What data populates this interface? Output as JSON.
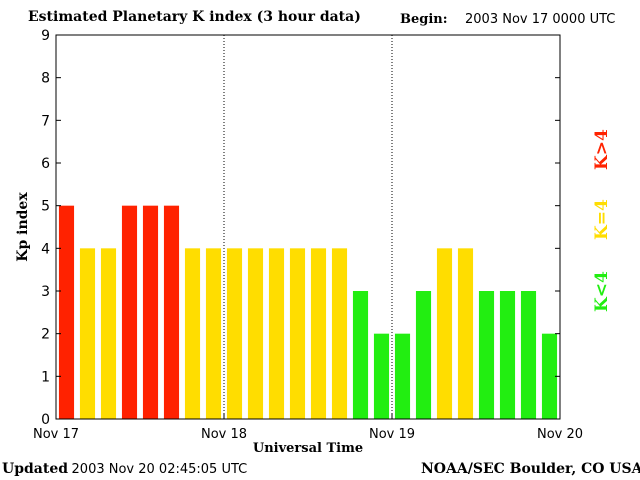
{
  "header": {
    "title": "Estimated Planetary K index (3 hour data)",
    "begin_label": "Begin:",
    "begin_value": "2003 Nov 17 0000 UTC"
  },
  "footer": {
    "updated_label": "Updated",
    "updated_value": "2003 Nov 20 02:45:05 UTC",
    "credit": "NOAA/SEC Boulder, CO USA"
  },
  "legend": [
    {
      "label": "K<4",
      "color": "#22ee11"
    },
    {
      "label": "K=4",
      "color": "#ffdd00"
    },
    {
      "label": "K>4",
      "color": "#ff2200"
    }
  ],
  "chart_data": {
    "type": "bar",
    "title": "Estimated Planetary K index (3 hour data)",
    "xlabel": "Universal Time",
    "ylabel": "Kp index",
    "ylim": [
      0,
      9
    ],
    "yticks": [
      "0",
      "1",
      "2",
      "3",
      "4",
      "5",
      "6",
      "7",
      "8",
      "9"
    ],
    "xticks": [
      "Nov 17",
      "Nov 18",
      "Nov 19",
      "Nov 20"
    ],
    "day_dividers": true,
    "colors": {
      "low": "#22ee11",
      "equal": "#ffdd00",
      "high": "#ff2200"
    },
    "values": [
      5,
      4,
      4,
      5,
      5,
      5,
      4,
      4,
      4,
      4,
      4,
      4,
      4,
      4,
      3,
      2,
      2,
      3,
      4,
      4,
      3,
      3,
      3,
      2
    ]
  }
}
